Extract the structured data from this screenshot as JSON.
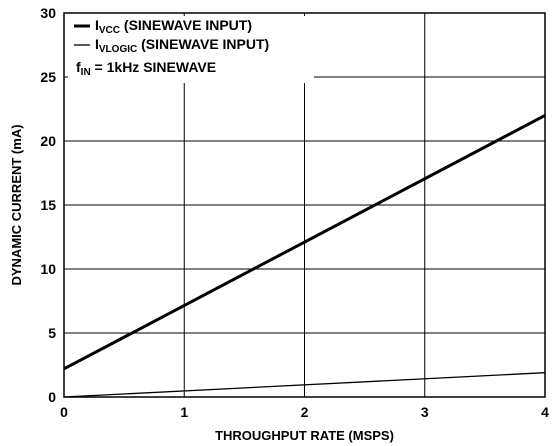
{
  "chart_data": {
    "type": "line",
    "xlabel": "THROUGHPUT RATE (MSPS)",
    "ylabel": "DYNAMIC CURRENT (mA)",
    "xlim": [
      0,
      4
    ],
    "ylim": [
      0,
      30
    ],
    "x_ticks": [
      "0",
      "1",
      "2",
      "3",
      "4"
    ],
    "y_ticks": [
      "0",
      "5",
      "10",
      "15",
      "20",
      "25",
      "30"
    ],
    "grid": true,
    "legend_position": "top-left",
    "series": [
      {
        "name_main": "I",
        "name_sub": "VCC",
        "name_rest": " (SINEWAVE INPUT)",
        "style": "thick",
        "x": [
          0,
          4
        ],
        "y": [
          2.2,
          22.0
        ]
      },
      {
        "name_main": "I",
        "name_sub": "VLOGIC",
        "name_rest": " (SINEWAVE INPUT)",
        "style": "thin",
        "x": [
          0,
          4
        ],
        "y": [
          0.0,
          1.9
        ]
      }
    ],
    "annotation": {
      "main": "f",
      "sub": "IN",
      "rest": " = 1kHz SINEWAVE"
    }
  }
}
